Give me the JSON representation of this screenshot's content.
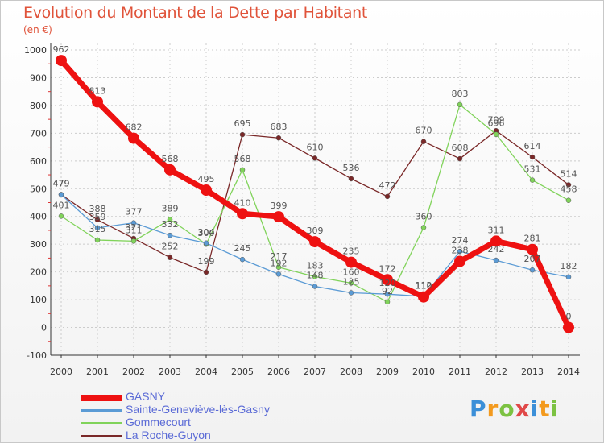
{
  "title": "Evolution du Montant de la Dette par Habitant",
  "unit": "(en €)",
  "brand": "Proxiti",
  "colors": {
    "title": "#e0533a",
    "axis": "#555555",
    "grid": "#cccccc",
    "label": "#555555",
    "legend_text": "#5b6bd6"
  },
  "chart_data": {
    "type": "line",
    "x": [
      "2000",
      "2001",
      "2002",
      "2003",
      "2004",
      "2005",
      "2006",
      "2007",
      "2008",
      "2009",
      "2010",
      "2011",
      "2012",
      "2013",
      "2014"
    ],
    "ylim": [
      -100,
      1000
    ],
    "yticks": [
      "-100",
      "0",
      "100",
      "200",
      "300",
      "400",
      "500",
      "600",
      "700",
      "800",
      "900",
      "1000"
    ],
    "ytick_values": [
      -100,
      0,
      100,
      200,
      300,
      400,
      500,
      600,
      700,
      800,
      900,
      1000
    ],
    "grid": true,
    "legend_position": "bottom-left",
    "series": [
      {
        "name": "GASNY",
        "color": "#ee1111",
        "values": [
          962,
          813,
          682,
          568,
          495,
          410,
          399,
          309,
          235,
          172,
          110,
          238,
          311,
          281,
          0
        ],
        "labels": [
          "962",
          "813",
          "682",
          "568",
          "495",
          "410",
          "399",
          "309",
          "235",
          "172",
          "110",
          "238",
          "311",
          "281",
          "0"
        ]
      },
      {
        "name": "Sainte-Geneviève-lès-Gasny",
        "color": "#5b9bd5",
        "values": [
          479,
          359,
          377,
          332,
          304,
          245,
          192,
          148,
          125,
          120,
          112,
          274,
          242,
          207,
          182
        ],
        "labels": [
          "479",
          "359",
          "377",
          "332",
          "304",
          "245",
          "192",
          "148",
          "125",
          "120",
          "112",
          "274",
          "242",
          "207",
          "182"
        ]
      },
      {
        "name": "Gommecourt",
        "color": "#80d35a",
        "values": [
          401,
          315,
          311,
          389,
          300,
          568,
          217,
          183,
          160,
          92,
          360,
          803,
          696,
          531,
          458
        ],
        "labels": [
          "401",
          "315",
          "311",
          "389",
          "300",
          "568",
          "217",
          "183",
          "160",
          "92",
          "360",
          "803",
          "696",
          "531",
          "458"
        ]
      },
      {
        "name": "La Roche-Guyon",
        "color": "#7a2828",
        "values": [
          479,
          388,
          321,
          252,
          199,
          695,
          683,
          610,
          536,
          472,
          670,
          608,
          709,
          614,
          514
        ],
        "labels": [
          "479",
          "388",
          "321",
          "252",
          "199",
          "695",
          "683",
          "610",
          "536",
          "472",
          "670",
          "608",
          "709",
          "614",
          "514"
        ]
      }
    ]
  }
}
